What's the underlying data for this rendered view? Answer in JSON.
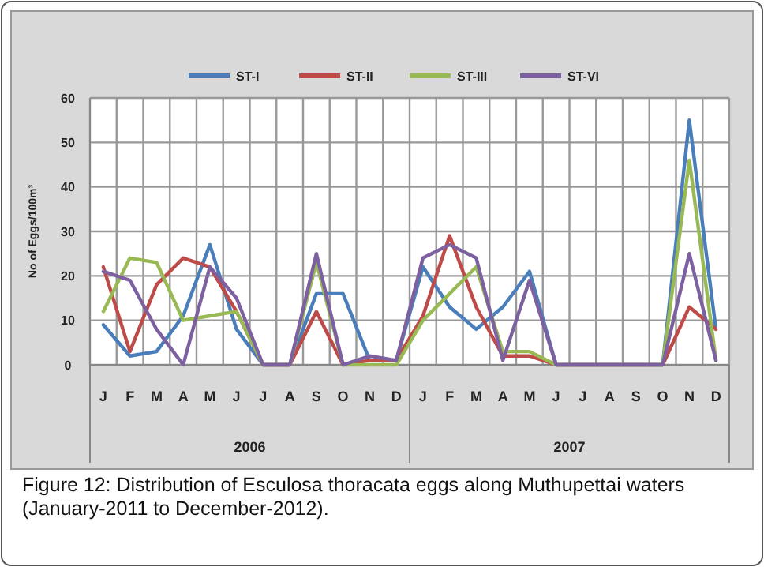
{
  "chart_data": {
    "type": "line",
    "ylabel": "No of Eggs/100m³",
    "categories": [
      "J",
      "F",
      "M",
      "A",
      "M",
      "J",
      "J",
      "A",
      "S",
      "O",
      "N",
      "D",
      "J",
      "F",
      "M",
      "A",
      "M",
      "J",
      "J",
      "A",
      "S",
      "O",
      "N",
      "D"
    ],
    "series": [
      {
        "name": "ST-I",
        "color": "#4a7ebb",
        "values": [
          9,
          2,
          3,
          11,
          27,
          8,
          0,
          0,
          16,
          16,
          1,
          1,
          22,
          13,
          8,
          13,
          21,
          0,
          0,
          0,
          0,
          0,
          55,
          8
        ]
      },
      {
        "name": "ST-II",
        "color": "#be4b48",
        "values": [
          22,
          3,
          18,
          24,
          22,
          12,
          0,
          0,
          12,
          0,
          1,
          1,
          11,
          29,
          13,
          2,
          2,
          0,
          0,
          0,
          0,
          0,
          13,
          8
        ]
      },
      {
        "name": "ST-III",
        "color": "#98b954",
        "values": [
          12,
          24,
          23,
          10,
          11,
          12,
          0,
          0,
          23,
          0,
          0,
          0,
          10,
          16,
          22,
          3,
          3,
          0,
          0,
          0,
          0,
          0,
          46,
          1
        ]
      },
      {
        "name": "ST-VI",
        "color": "#7d60a0",
        "values": [
          21,
          19,
          8,
          0,
          22,
          15,
          0,
          0,
          25,
          0,
          2,
          1,
          24,
          27,
          24,
          1,
          19,
          0,
          0,
          0,
          0,
          0,
          25,
          1
        ]
      }
    ],
    "ylim": [
      0,
      60
    ],
    "yticks": [
      0,
      10,
      20,
      30,
      40,
      50,
      60
    ],
    "grid": true,
    "legend": "top",
    "marker": "none",
    "line_style": "solid",
    "annotations": [
      "2006",
      "2007",
      "Figure 12: Distribution of Esculosa thoracata eggs along Muthupettai waters (January-2011 to December-2012)."
    ]
  }
}
